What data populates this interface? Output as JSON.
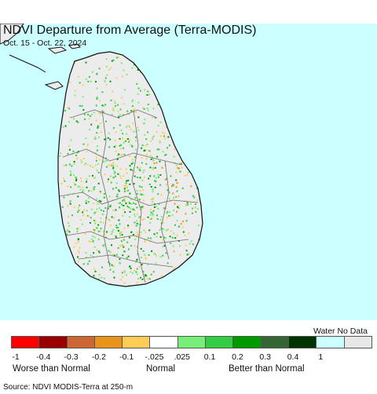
{
  "title": "NDVI Departure from Average (Terra-MODIS)",
  "subtitle": "Oct. 15 - Oct. 22, 2024",
  "map": {
    "region": "Sri Lanka",
    "colors": {
      "water": "#ccffff",
      "land_normal": "#ececec",
      "border": "#6e6e6e",
      "coast": "#111111"
    }
  },
  "legend": {
    "water_no_data_label": "Water No Data",
    "swatches": [
      {
        "color": "#ff0000"
      },
      {
        "color": "#990000"
      },
      {
        "color": "#cc6633"
      },
      {
        "color": "#e8931a"
      },
      {
        "color": "#ffcc55"
      },
      {
        "color": "#ffffff"
      },
      {
        "color": "#77ee77"
      },
      {
        "color": "#33cc44"
      },
      {
        "color": "#009900"
      },
      {
        "color": "#336633"
      },
      {
        "color": "#003300"
      },
      {
        "color": "#ccffff"
      },
      {
        "color": "#e8e8e8"
      }
    ],
    "ticks": [
      "-1",
      "-0.4",
      "-0.3",
      "-0.2",
      "-0.1",
      "-.025",
      ".025",
      "0.1",
      "0.2",
      "0.3",
      "0.4",
      "1"
    ],
    "classes": {
      "worse": "Worse than Normal",
      "normal": "Normal",
      "better": "Better than Normal"
    }
  },
  "source": "Source: NDVI MODIS-Terra at 250-m"
}
